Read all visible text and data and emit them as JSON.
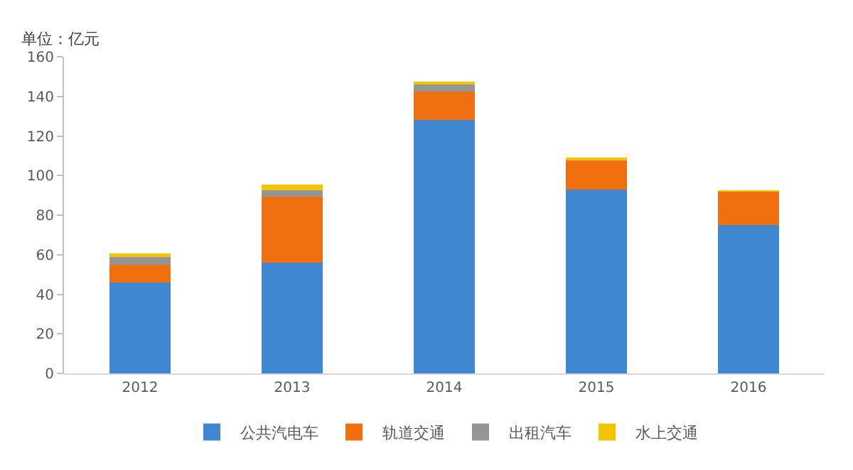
{
  "chart_data": {
    "type": "bar",
    "stacked": true,
    "categories": [
      "2012",
      "2013",
      "2014",
      "2015",
      "2016"
    ],
    "series": [
      {
        "name": "公共汽电车",
        "color": "#3f87d0",
        "values": [
          46,
          56,
          128,
          93,
          75
        ]
      },
      {
        "name": "轨道交通",
        "color": "#f0700f",
        "values": [
          9,
          33.5,
          14.5,
          15,
          17
        ]
      },
      {
        "name": "出租汽车",
        "color": "#959595",
        "values": [
          4,
          3,
          3.5,
          0,
          0
        ]
      },
      {
        "name": "水上交通",
        "color": "#f5c400",
        "values": [
          1.5,
          3,
          1.5,
          0.7,
          0.5
        ]
      }
    ],
    "ylim": [
      0,
      160
    ],
    "yticks": [
      0,
      20,
      40,
      60,
      80,
      100,
      120,
      140,
      160
    ],
    "annotations": [
      "单位：亿元"
    ],
    "legend": "bottom",
    "grid": false
  }
}
